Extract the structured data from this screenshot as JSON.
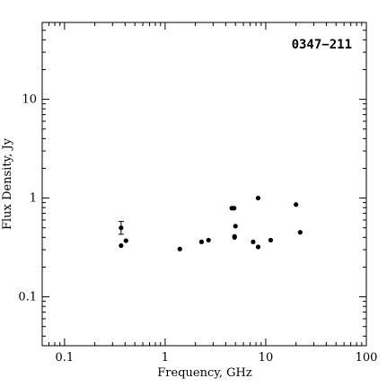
{
  "chart_data": {
    "type": "scatter",
    "title": "0347−211",
    "xlabel": "Frequency, GHz",
    "ylabel": "Flux Density, Jy",
    "xscale": "log",
    "yscale": "log",
    "xlim": [
      0.06,
      100
    ],
    "ylim": [
      0.032,
      60
    ],
    "x_ticks": [
      {
        "value": 0.1,
        "label": "0.1"
      },
      {
        "value": 1,
        "label": "1"
      },
      {
        "value": 10,
        "label": "10"
      },
      {
        "value": 100,
        "label": "100"
      }
    ],
    "y_ticks": [
      {
        "value": 0.1,
        "label": "0.1"
      },
      {
        "value": 1,
        "label": "1"
      },
      {
        "value": 10,
        "label": "10"
      }
    ],
    "grid": false,
    "legend": "none",
    "marker_color": "#000000",
    "points": [
      {
        "x": 0.365,
        "y": 0.5,
        "y_err_low": 0.43,
        "y_err_high": 0.58
      },
      {
        "x": 0.365,
        "y": 0.33
      },
      {
        "x": 0.408,
        "y": 0.37
      },
      {
        "x": 1.4,
        "y": 0.305
      },
      {
        "x": 2.3,
        "y": 0.36
      },
      {
        "x": 2.7,
        "y": 0.375
      },
      {
        "x": 4.6,
        "y": 0.79
      },
      {
        "x": 4.85,
        "y": 0.79
      },
      {
        "x": 4.9,
        "y": 0.4
      },
      {
        "x": 4.9,
        "y": 0.41
      },
      {
        "x": 5.0,
        "y": 0.52
      },
      {
        "x": 7.5,
        "y": 0.36
      },
      {
        "x": 8.4,
        "y": 1.0
      },
      {
        "x": 8.4,
        "y": 0.32
      },
      {
        "x": 11.2,
        "y": 0.375
      },
      {
        "x": 20,
        "y": 0.86
      },
      {
        "x": 22,
        "y": 0.45
      }
    ]
  }
}
